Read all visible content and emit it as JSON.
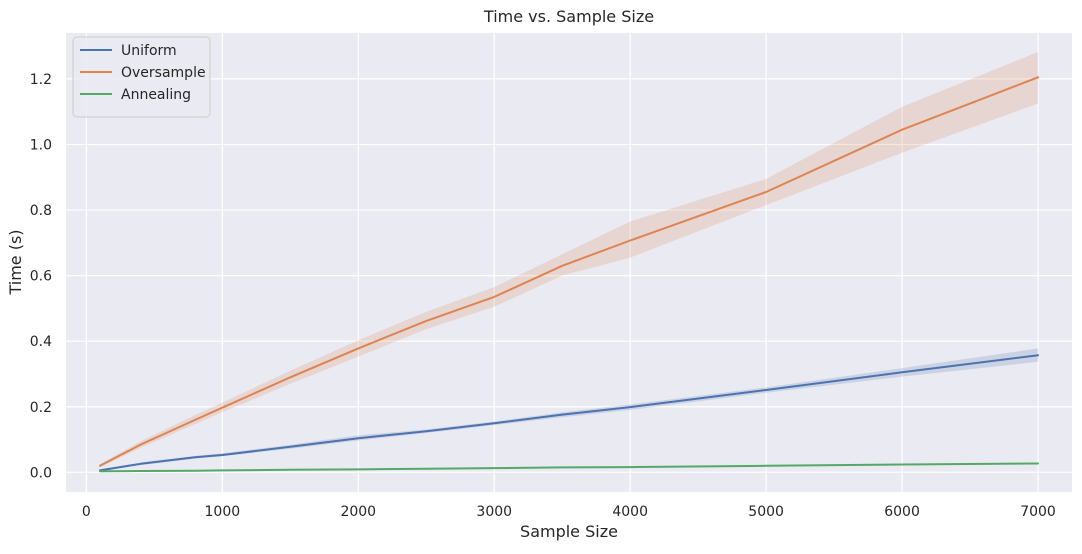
{
  "chart_data": {
    "type": "line",
    "title": "Time vs. Sample Size",
    "xlabel": "Sample Size",
    "ylabel": "Time (s)",
    "xlim": [
      -150,
      7250
    ],
    "ylim": [
      -0.06,
      1.34
    ],
    "x_ticks": [
      0,
      1000,
      2000,
      3000,
      4000,
      5000,
      6000,
      7000
    ],
    "y_ticks": [
      0.0,
      0.2,
      0.4,
      0.6,
      0.8,
      1.0,
      1.2
    ],
    "x_tick_labels": [
      "0",
      "1000",
      "2000",
      "3000",
      "4000",
      "5000",
      "6000",
      "7000"
    ],
    "y_tick_labels": [
      "0.0",
      "0.2",
      "0.4",
      "0.6",
      "0.8",
      "1.0",
      "1.2"
    ],
    "grid": true,
    "legend_position": "top-left",
    "background": "#eaeaf2",
    "series": [
      {
        "name": "Uniform",
        "color": "#4c72b0",
        "x": [
          100,
          400,
          800,
          1000,
          1500,
          2000,
          2500,
          3000,
          3500,
          4000,
          5000,
          6000,
          7000
        ],
        "y": [
          0.006,
          0.026,
          0.046,
          0.053,
          0.078,
          0.104,
          0.125,
          0.15,
          0.176,
          0.199,
          0.251,
          0.305,
          0.357
        ],
        "ci_lower": [
          0.004,
          0.022,
          0.042,
          0.049,
          0.072,
          0.097,
          0.12,
          0.144,
          0.168,
          0.19,
          0.243,
          0.292,
          0.337
        ],
        "ci_upper": [
          0.009,
          0.03,
          0.05,
          0.058,
          0.084,
          0.113,
          0.131,
          0.155,
          0.183,
          0.207,
          0.259,
          0.318,
          0.378
        ]
      },
      {
        "name": "Oversample",
        "color": "#dd8452",
        "x": [
          100,
          400,
          800,
          1000,
          1500,
          2000,
          2500,
          3000,
          3500,
          4000,
          5000,
          6000,
          7000
        ],
        "y": [
          0.02,
          0.085,
          0.16,
          0.197,
          0.29,
          0.378,
          0.462,
          0.535,
          0.63,
          0.707,
          0.855,
          1.045,
          1.205
        ],
        "ci_lower": [
          0.015,
          0.075,
          0.147,
          0.183,
          0.27,
          0.353,
          0.437,
          0.505,
          0.6,
          0.655,
          0.815,
          0.975,
          1.125
        ],
        "ci_upper": [
          0.025,
          0.095,
          0.175,
          0.213,
          0.31,
          0.403,
          0.49,
          0.565,
          0.665,
          0.765,
          0.895,
          1.115,
          1.282
        ]
      },
      {
        "name": "Annealing",
        "color": "#55a868",
        "x": [
          100,
          400,
          800,
          1000,
          1500,
          2000,
          2500,
          3000,
          3500,
          4000,
          5000,
          6000,
          7000
        ],
        "y": [
          0.003,
          0.004,
          0.005,
          0.006,
          0.008,
          0.009,
          0.011,
          0.013,
          0.015,
          0.016,
          0.02,
          0.024,
          0.027
        ],
        "ci_lower": [
          0.002,
          0.003,
          0.004,
          0.005,
          0.007,
          0.008,
          0.01,
          0.012,
          0.013,
          0.015,
          0.019,
          0.022,
          0.025
        ],
        "ci_upper": [
          0.004,
          0.005,
          0.006,
          0.007,
          0.009,
          0.011,
          0.012,
          0.014,
          0.016,
          0.018,
          0.022,
          0.026,
          0.029
        ]
      }
    ]
  }
}
